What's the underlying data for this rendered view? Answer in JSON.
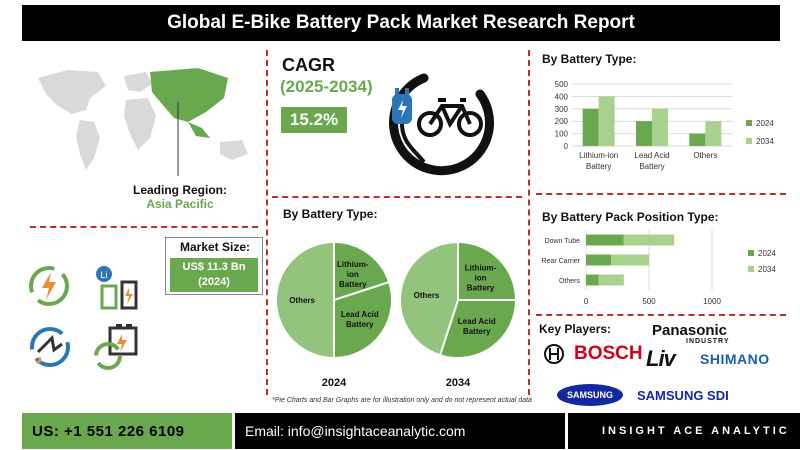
{
  "title": "Global E-Bike Battery Pack Market Research Report",
  "region": {
    "label": "Leading Region:",
    "value": "Asia Pacific"
  },
  "cagr": {
    "label": "CAGR",
    "years": "(2025-2034)",
    "value": "15.2%"
  },
  "market_size": {
    "label": "Market Size:",
    "value_line1": "US$ 11.3 Bn",
    "value_line2": "(2024)"
  },
  "key_players": {
    "label": "Key Players:",
    "logos": [
      "BOSCH",
      "Panasonic",
      "INDUSTRY",
      "Liv",
      "SHIMANO",
      "SAMSUNG",
      "SAMSUNG SDI"
    ]
  },
  "note": "*Pie Charts and Bar Graphs are for illustration only and do not represent actual data",
  "footer": {
    "phone": "US: +1 551 226 6109",
    "email": "Email: info@insightaceanalytic.com",
    "brand": "INSIGHT ACE ANALYTIC"
  },
  "colors": {
    "dark_green": "#6aa84f",
    "light_green": "#93c47d",
    "accent_red": "#b5332b",
    "icon_orange": "#e69138",
    "icon_blue": "#2e75b6"
  },
  "chart_data": [
    {
      "type": "bar",
      "title": "By Battery Type:",
      "categories": [
        "Lithium-ion Battery",
        "Lead Acid Battery",
        "Others"
      ],
      "category_lines": [
        [
          "Lithium-ion",
          "Battery"
        ],
        [
          "Lead Acid",
          "Battery"
        ],
        [
          "Others"
        ]
      ],
      "series": [
        {
          "name": "2024",
          "values": [
            300,
            200,
            100
          ],
          "color": "#6aa84f"
        },
        {
          "name": "2034",
          "values": [
            400,
            300,
            200
          ],
          "color": "#a9d18e"
        }
      ],
      "ylim": [
        0,
        500
      ],
      "yticks": [
        0,
        100,
        200,
        300,
        400,
        500
      ],
      "grid": true,
      "legend": "right"
    },
    {
      "type": "bar",
      "orientation": "horizontal",
      "stacked": true,
      "title": "By Battery Pack Position Type:",
      "categories": [
        "Down Tube",
        "Rear Carrier",
        "Others"
      ],
      "series": [
        {
          "name": "2024",
          "values": [
            300,
            200,
            100
          ],
          "color": "#6aa84f"
        },
        {
          "name": "2034",
          "values": [
            400,
            300,
            200
          ],
          "color": "#a9d18e"
        }
      ],
      "xlim": [
        0,
        1000
      ],
      "xticks": [
        0,
        500,
        1000
      ],
      "legend": "right"
    },
    {
      "type": "pie",
      "title": "By Battery Type:",
      "charts": [
        {
          "label": "2024",
          "slices": [
            {
              "name": "Lithium-ion Battery",
              "label_lines": [
                "Lithium-",
                "ion",
                "Battery"
              ],
              "value": 20,
              "color": "#6aa84f"
            },
            {
              "name": "Lead Acid Battery",
              "label_lines": [
                "Lead Acid",
                "Battery"
              ],
              "value": 30,
              "color": "#6aa84f"
            },
            {
              "name": "Others",
              "label_lines": [
                "Others"
              ],
              "value": 50,
              "color": "#93c47d"
            }
          ]
        },
        {
          "label": "2034",
          "slices": [
            {
              "name": "Lithium-ion Battery",
              "label_lines": [
                "Lithium-",
                "ion",
                "Battery"
              ],
              "value": 25,
              "color": "#6aa84f"
            },
            {
              "name": "Lead Acid Battery",
              "label_lines": [
                "Lead Acid",
                "Battery"
              ],
              "value": 30,
              "color": "#6aa84f"
            },
            {
              "name": "Others",
              "label_lines": [
                "Others"
              ],
              "value": 45,
              "color": "#93c47d"
            }
          ]
        }
      ]
    }
  ]
}
